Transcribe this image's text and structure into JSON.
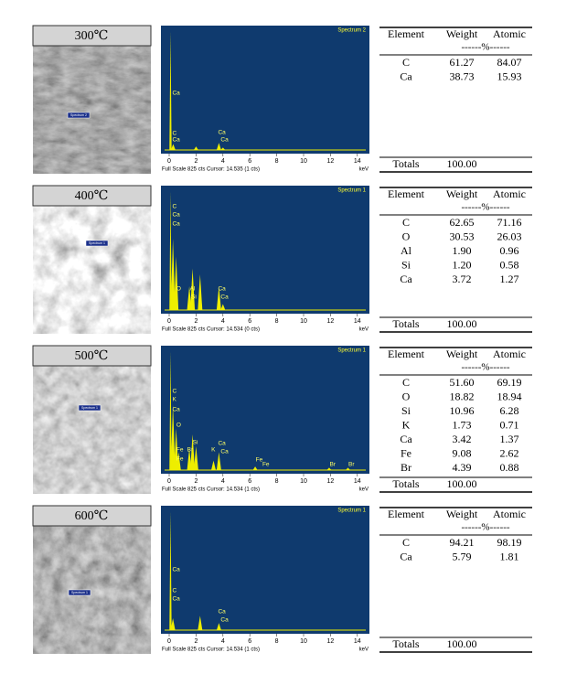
{
  "panels": [
    {
      "temperature": "300℃",
      "image_label": "Spectrum 2",
      "spectrum": {
        "name": "Spectrum 2",
        "peak_labels": [
          "Ca",
          "C",
          "Ca",
          "Ca",
          "Ca"
        ],
        "xticks": [
          0,
          2,
          4,
          6,
          8,
          10,
          12,
          14
        ],
        "x_unit": "keV",
        "footer": "Full Scale 825 cts Cursor: 14.535 (1 cts)"
      },
      "table": {
        "header": [
          "Element",
          "Weight",
          "Atomic"
        ],
        "subheader": "------%------",
        "rows": [
          [
            "C",
            "61.27",
            "84.07"
          ],
          [
            "Ca",
            "38.73",
            "15.93"
          ]
        ],
        "totals": [
          "Totals",
          "100.00"
        ]
      }
    },
    {
      "temperature": "400℃",
      "image_label": "Spectrum 1",
      "spectrum": {
        "name": "Spectrum 1",
        "peak_labels": [
          "C",
          "Ca",
          "Ca",
          "O",
          "Al",
          "Si",
          "Ca",
          "Ca"
        ],
        "xticks": [
          0,
          2,
          4,
          6,
          8,
          10,
          12,
          14
        ],
        "x_unit": "keV",
        "footer": "Full Scale 825 cts Cursor: 14.534 (0 cts)"
      },
      "table": {
        "header": [
          "Element",
          "Weight",
          "Atomic"
        ],
        "subheader": "------%------",
        "rows": [
          [
            "C",
            "62.65",
            "71.16"
          ],
          [
            "O",
            "30.53",
            "26.03"
          ],
          [
            "Al",
            "1.90",
            "0.96"
          ],
          [
            "Si",
            "1.20",
            "0.58"
          ],
          [
            "Ca",
            "3.72",
            "1.27"
          ]
        ],
        "totals": [
          "Totals",
          "100.00"
        ]
      }
    },
    {
      "temperature": "500℃",
      "image_label": "Spectrum 1",
      "spectrum": {
        "name": "Spectrum 1",
        "peak_labels": [
          "C",
          "K",
          "Ca",
          "O",
          "Fe",
          "Fe",
          "Br",
          "Si",
          "K",
          "Ca",
          "Ca",
          "Fe",
          "Fe",
          "Br",
          "Br"
        ],
        "xticks": [
          0,
          2,
          4,
          6,
          8,
          10,
          12,
          14
        ],
        "x_unit": "keV",
        "footer": "Full Scale 825 cts Cursor: 14.534 (1 cts)"
      },
      "table": {
        "header": [
          "Element",
          "Weight",
          "Atomic"
        ],
        "subheader": "------%------",
        "rows": [
          [
            "C",
            "51.60",
            "69.19"
          ],
          [
            "O",
            "18.82",
            "18.94"
          ],
          [
            "Si",
            "10.96",
            "6.28"
          ],
          [
            "K",
            "1.73",
            "0.71"
          ],
          [
            "Ca",
            "3.42",
            "1.37"
          ],
          [
            "Fe",
            "9.08",
            "2.62"
          ],
          [
            "Br",
            "4.39",
            "0.88"
          ]
        ],
        "totals": [
          "Totals",
          "100.00"
        ]
      }
    },
    {
      "temperature": "600℃",
      "image_label": "Spectrum 1",
      "spectrum": {
        "name": "Spectrum 1",
        "peak_labels": [
          "Ca",
          "C",
          "Ca",
          "Ca",
          "Ca"
        ],
        "xticks": [
          0,
          2,
          4,
          6,
          8,
          10,
          12,
          14
        ],
        "x_unit": "keV",
        "footer": "Full Scale 825 cts Cursor: 14.534 (1 cts)"
      },
      "table": {
        "header": [
          "Element",
          "Weight",
          "Atomic"
        ],
        "subheader": "------%------",
        "rows": [
          [
            "C",
            "94.21",
            "98.19"
          ],
          [
            "Ca",
            "5.79",
            "1.81"
          ]
        ],
        "totals": [
          "Totals",
          "100.00"
        ]
      }
    }
  ]
}
